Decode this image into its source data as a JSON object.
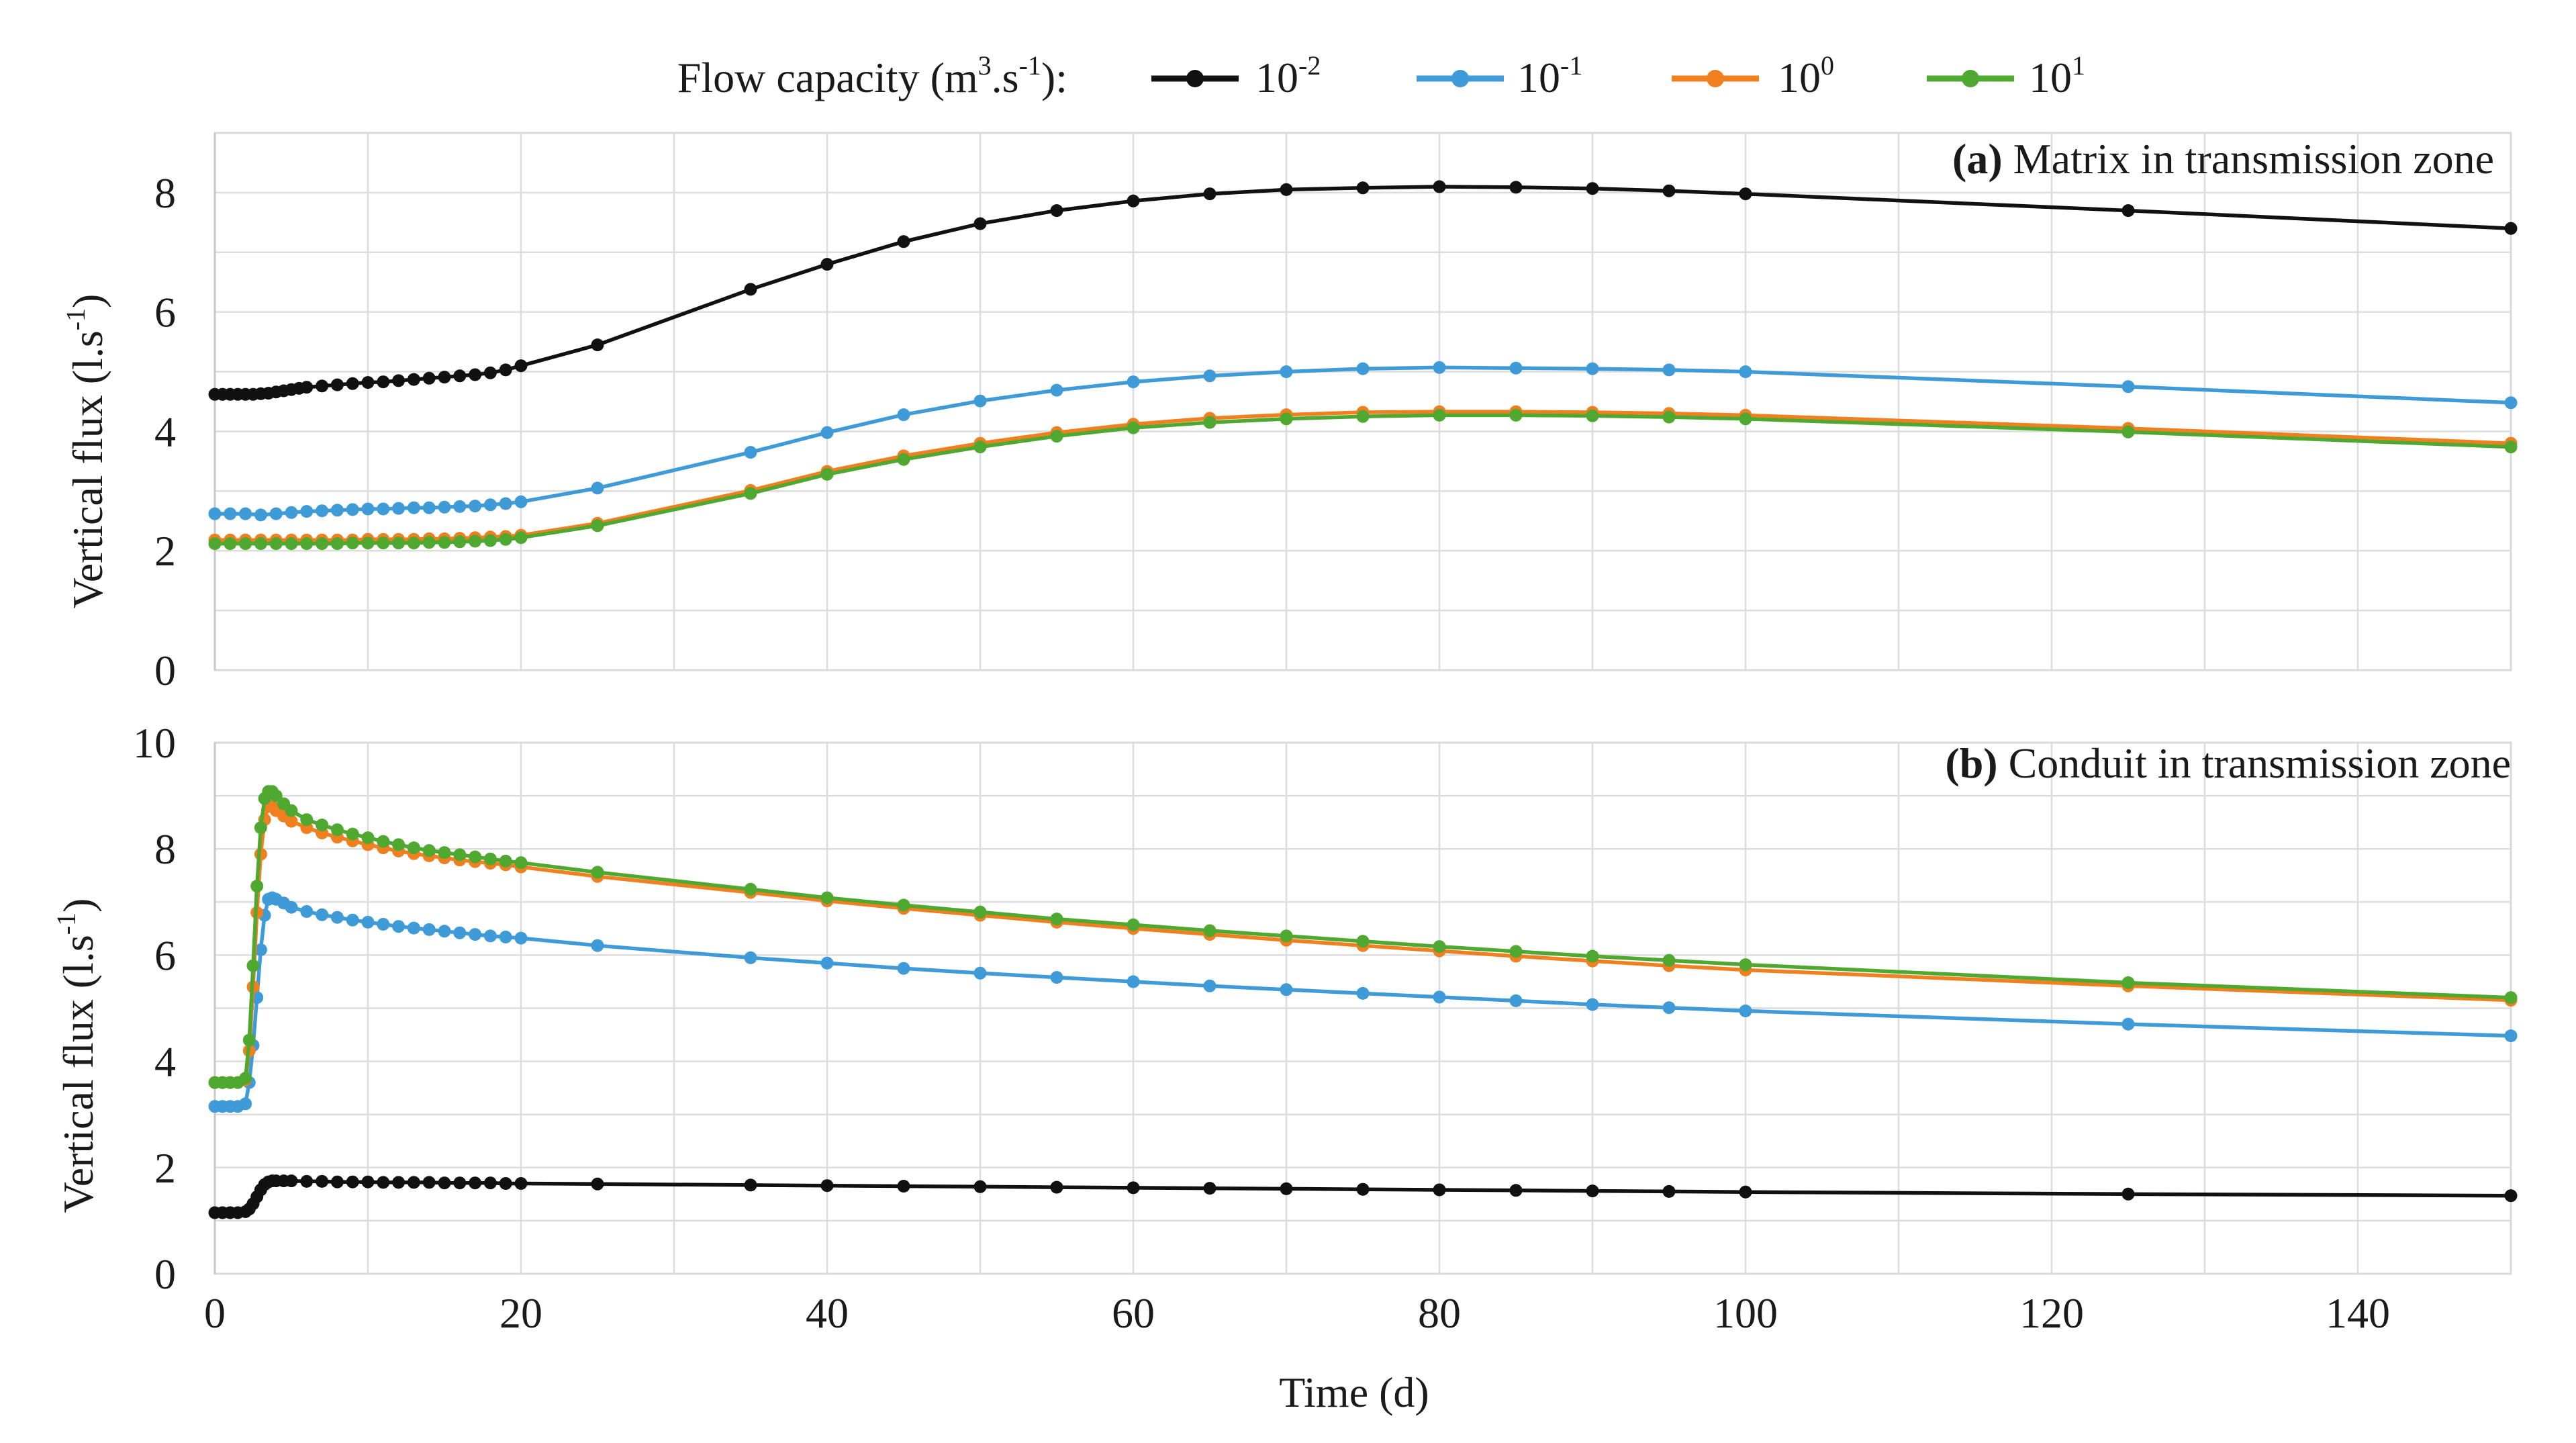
{
  "legend": {
    "title_text": "Flow capacity (m",
    "title_sup1": "3",
    "title_mid": ".s",
    "title_sup2": "-1",
    "title_end": "):",
    "entries": [
      {
        "base": "10",
        "exp": "-2",
        "color": "#111111"
      },
      {
        "base": "10",
        "exp": "-1",
        "color": "#3f9ad8"
      },
      {
        "base": "10",
        "exp": "0",
        "color": "#f07f1f"
      },
      {
        "base": "10",
        "exp": "1",
        "color": "#4fa82f"
      }
    ]
  },
  "shared": {
    "xlabel": "Time (d)",
    "ylabel_main": "Vertical flux (l.s",
    "ylabel_sup": "-1",
    "ylabel_end": ")",
    "x_ticks": [
      "0",
      "20",
      "40",
      "60",
      "80",
      "100",
      "120",
      "140"
    ],
    "x_tick_values": [
      0,
      20,
      40,
      60,
      80,
      100,
      120,
      140
    ],
    "xlim": [
      0,
      150
    ]
  },
  "chart_data": [
    {
      "type": "line",
      "panel_label": "(a)",
      "title": "Matrix in transmission zone",
      "xlabel": "Time (d)",
      "ylabel": "Vertical flux (l.s-1)",
      "ylim": [
        0,
        9
      ],
      "y_ticks": [
        "0",
        "2",
        "4",
        "6",
        "8"
      ],
      "y_tick_values": [
        0,
        2,
        4,
        6,
        8
      ],
      "series": [
        {
          "name": "10-2",
          "color": "#111111",
          "x": [
            0,
            0.5,
            1,
            1.5,
            2,
            2.5,
            3,
            3.5,
            4,
            4.5,
            5,
            5.5,
            6,
            7,
            8,
            9,
            10,
            11,
            12,
            13,
            14,
            15,
            16,
            17,
            18,
            19,
            20,
            25,
            35,
            40,
            45,
            50,
            55,
            60,
            65,
            70,
            75,
            80,
            85,
            90,
            95,
            100,
            125,
            150
          ],
          "y": [
            4.62,
            4.62,
            4.62,
            4.62,
            4.62,
            4.62,
            4.63,
            4.64,
            4.66,
            4.68,
            4.7,
            4.72,
            4.74,
            4.76,
            4.78,
            4.8,
            4.82,
            4.83,
            4.85,
            4.87,
            4.89,
            4.91,
            4.93,
            4.95,
            4.98,
            5.03,
            5.1,
            5.45,
            6.38,
            6.8,
            7.18,
            7.48,
            7.7,
            7.86,
            7.98,
            8.05,
            8.08,
            8.1,
            8.09,
            8.07,
            8.03,
            7.98,
            7.7,
            7.4
          ]
        },
        {
          "name": "10-1",
          "color": "#3f9ad8",
          "x": [
            0,
            1,
            2,
            3,
            4,
            5,
            6,
            7,
            8,
            9,
            10,
            11,
            12,
            13,
            14,
            15,
            16,
            17,
            18,
            19,
            20,
            25,
            35,
            40,
            45,
            50,
            55,
            60,
            65,
            70,
            75,
            80,
            85,
            90,
            95,
            100,
            125,
            150
          ],
          "y": [
            2.62,
            2.62,
            2.62,
            2.6,
            2.62,
            2.64,
            2.66,
            2.67,
            2.68,
            2.69,
            2.7,
            2.7,
            2.71,
            2.72,
            2.72,
            2.73,
            2.74,
            2.75,
            2.77,
            2.79,
            2.82,
            3.05,
            3.65,
            3.98,
            4.28,
            4.51,
            4.69,
            4.83,
            4.93,
            5.0,
            5.05,
            5.07,
            5.06,
            5.05,
            5.03,
            5.0,
            4.75,
            4.48
          ]
        },
        {
          "name": "100",
          "color": "#f07f1f",
          "x": [
            0,
            1,
            2,
            3,
            4,
            5,
            6,
            7,
            8,
            9,
            10,
            11,
            12,
            13,
            14,
            15,
            16,
            17,
            18,
            19,
            20,
            25,
            35,
            40,
            45,
            50,
            55,
            60,
            65,
            70,
            75,
            80,
            85,
            90,
            95,
            100,
            125,
            150
          ],
          "y": [
            2.18,
            2.18,
            2.18,
            2.18,
            2.18,
            2.18,
            2.18,
            2.18,
            2.18,
            2.18,
            2.19,
            2.19,
            2.19,
            2.19,
            2.2,
            2.2,
            2.21,
            2.22,
            2.23,
            2.24,
            2.26,
            2.46,
            3.01,
            3.33,
            3.59,
            3.8,
            3.98,
            4.12,
            4.22,
            4.28,
            4.32,
            4.33,
            4.33,
            4.32,
            4.3,
            4.27,
            4.05,
            3.8
          ]
        },
        {
          "name": "101",
          "color": "#4fa82f",
          "x": [
            0,
            1,
            2,
            3,
            4,
            5,
            6,
            7,
            8,
            9,
            10,
            11,
            12,
            13,
            14,
            15,
            16,
            17,
            18,
            19,
            20,
            25,
            35,
            40,
            45,
            50,
            55,
            60,
            65,
            70,
            75,
            80,
            85,
            90,
            95,
            100,
            125,
            150
          ],
          "y": [
            2.12,
            2.12,
            2.12,
            2.12,
            2.12,
            2.12,
            2.12,
            2.12,
            2.12,
            2.13,
            2.13,
            2.13,
            2.13,
            2.13,
            2.14,
            2.14,
            2.15,
            2.16,
            2.17,
            2.19,
            2.22,
            2.42,
            2.96,
            3.28,
            3.53,
            3.74,
            3.92,
            4.06,
            4.15,
            4.21,
            4.25,
            4.27,
            4.27,
            4.26,
            4.24,
            4.21,
            3.99,
            3.74
          ]
        }
      ]
    },
    {
      "type": "line",
      "panel_label": "(b)",
      "title": "Conduit in transmission zone",
      "xlabel": "Time (d)",
      "ylabel": "Vertical flux (l.s-1)",
      "ylim": [
        0,
        10
      ],
      "y_ticks": [
        "0",
        "2",
        "4",
        "6",
        "8",
        "10"
      ],
      "y_tick_values": [
        0,
        2,
        4,
        6,
        8,
        10
      ],
      "series": [
        {
          "name": "10-2",
          "color": "#111111",
          "x": [
            0,
            0.5,
            1,
            1.5,
            2,
            2.25,
            2.5,
            2.75,
            3,
            3.25,
            3.5,
            3.75,
            4,
            4.5,
            5,
            6,
            7,
            8,
            9,
            10,
            11,
            12,
            13,
            14,
            15,
            16,
            17,
            18,
            19,
            20,
            25,
            35,
            40,
            45,
            50,
            55,
            60,
            65,
            70,
            75,
            80,
            85,
            90,
            95,
            100,
            125,
            150
          ],
          "y": [
            1.15,
            1.15,
            1.15,
            1.15,
            1.17,
            1.22,
            1.32,
            1.45,
            1.58,
            1.68,
            1.73,
            1.75,
            1.75,
            1.75,
            1.75,
            1.74,
            1.74,
            1.73,
            1.73,
            1.73,
            1.72,
            1.72,
            1.72,
            1.72,
            1.71,
            1.71,
            1.71,
            1.71,
            1.7,
            1.7,
            1.69,
            1.67,
            1.66,
            1.65,
            1.64,
            1.63,
            1.62,
            1.61,
            1.6,
            1.59,
            1.58,
            1.57,
            1.56,
            1.55,
            1.54,
            1.5,
            1.47
          ]
        },
        {
          "name": "10-1",
          "color": "#3f9ad8",
          "x": [
            0,
            0.5,
            1,
            1.5,
            2,
            2.25,
            2.5,
            2.75,
            3,
            3.25,
            3.5,
            3.75,
            4,
            4.5,
            5,
            6,
            7,
            8,
            9,
            10,
            11,
            12,
            13,
            14,
            15,
            16,
            17,
            18,
            19,
            20,
            25,
            35,
            40,
            45,
            50,
            55,
            60,
            65,
            70,
            75,
            80,
            85,
            90,
            95,
            100,
            125,
            150
          ],
          "y": [
            3.15,
            3.15,
            3.15,
            3.15,
            3.2,
            3.6,
            4.3,
            5.2,
            6.1,
            6.75,
            7.05,
            7.08,
            7.05,
            6.98,
            6.9,
            6.82,
            6.76,
            6.71,
            6.66,
            6.62,
            6.58,
            6.54,
            6.51,
            6.48,
            6.45,
            6.42,
            6.39,
            6.36,
            6.34,
            6.32,
            6.18,
            5.95,
            5.85,
            5.75,
            5.66,
            5.58,
            5.5,
            5.42,
            5.35,
            5.28,
            5.21,
            5.14,
            5.07,
            5.01,
            4.95,
            4.7,
            4.48
          ]
        },
        {
          "name": "100",
          "color": "#f07f1f",
          "x": [
            0,
            0.5,
            1,
            1.5,
            2,
            2.25,
            2.5,
            2.75,
            3,
            3.25,
            3.5,
            3.75,
            4,
            4.5,
            5,
            6,
            7,
            8,
            9,
            10,
            11,
            12,
            13,
            14,
            15,
            16,
            17,
            18,
            19,
            20,
            25,
            35,
            40,
            45,
            50,
            55,
            60,
            65,
            70,
            75,
            80,
            85,
            90,
            95,
            100,
            125,
            150
          ],
          "y": [
            3.6,
            3.6,
            3.6,
            3.6,
            3.65,
            4.2,
            5.4,
            6.8,
            7.9,
            8.55,
            8.8,
            8.8,
            8.72,
            8.62,
            8.52,
            8.4,
            8.3,
            8.22,
            8.15,
            8.08,
            8.02,
            7.96,
            7.91,
            7.87,
            7.83,
            7.79,
            7.76,
            7.73,
            7.7,
            7.66,
            7.48,
            7.18,
            7.02,
            6.88,
            6.75,
            6.62,
            6.5,
            6.39,
            6.28,
            6.18,
            6.08,
            5.98,
            5.89,
            5.8,
            5.72,
            5.42,
            5.15
          ]
        },
        {
          "name": "101",
          "color": "#4fa82f",
          "x": [
            0,
            0.5,
            1,
            1.5,
            2,
            2.25,
            2.5,
            2.75,
            3,
            3.25,
            3.5,
            3.75,
            4,
            4.5,
            5,
            6,
            7,
            8,
            9,
            10,
            11,
            12,
            13,
            14,
            15,
            16,
            17,
            18,
            19,
            20,
            25,
            35,
            40,
            45,
            50,
            55,
            60,
            65,
            70,
            75,
            80,
            85,
            90,
            95,
            100,
            125,
            150
          ],
          "y": [
            3.6,
            3.6,
            3.6,
            3.6,
            3.68,
            4.4,
            5.8,
            7.3,
            8.4,
            8.95,
            9.08,
            9.08,
            9.0,
            8.85,
            8.72,
            8.55,
            8.45,
            8.36,
            8.28,
            8.21,
            8.14,
            8.08,
            8.02,
            7.97,
            7.93,
            7.89,
            7.85,
            7.81,
            7.77,
            7.74,
            7.56,
            7.24,
            7.08,
            6.94,
            6.81,
            6.68,
            6.57,
            6.46,
            6.36,
            6.26,
            6.16,
            6.07,
            5.98,
            5.9,
            5.82,
            5.48,
            5.2
          ]
        }
      ]
    }
  ]
}
